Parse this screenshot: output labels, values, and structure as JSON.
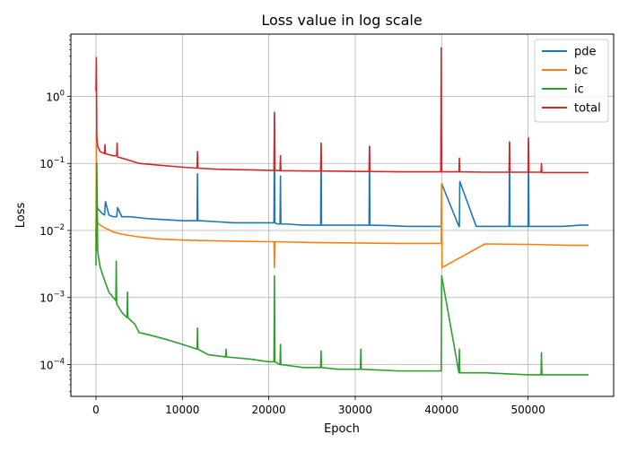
{
  "chart_data": {
    "type": "line",
    "title": "Loss value in log scale",
    "xlabel": "Epoch",
    "ylabel": "Loss",
    "yscale": "log",
    "grid": true,
    "legend_position": "top-right",
    "xlim": [
      -2900,
      59900
    ],
    "ylim": [
      3.35e-05,
      8.5
    ],
    "x_ticks": [
      0,
      10000,
      20000,
      30000,
      40000,
      50000
    ],
    "x_tick_labels": [
      "0",
      "10000",
      "20000",
      "30000",
      "40000",
      "50000"
    ],
    "y_ticks": [
      0.0001,
      0.001,
      0.01,
      0.1,
      1
    ],
    "y_tick_labels": [
      {
        "base": "10",
        "exp": "−4"
      },
      {
        "base": "10",
        "exp": "−3"
      },
      {
        "base": "10",
        "exp": "−2"
      },
      {
        "base": "10",
        "exp": "−1"
      },
      {
        "base": "10",
        "exp": "0"
      }
    ],
    "series": [
      {
        "name": "pde",
        "color": "#1f77b4",
        "x": [
          0,
          100,
          200,
          400,
          700,
          1000,
          1100,
          1500,
          2000,
          2400,
          2500,
          3000,
          4000,
          5000,
          6000,
          8000,
          10000,
          11700,
          11750,
          11800,
          12000,
          14000,
          16000,
          18000,
          20000,
          20600,
          20650,
          20700,
          21000,
          21300,
          21350,
          21400,
          22000,
          24000,
          26000,
          26050,
          26100,
          28000,
          30000,
          31600,
          31650,
          31700,
          34000,
          36000,
          38000,
          39900,
          39950,
          40000,
          42000,
          42050,
          42100,
          44000,
          46000,
          47800,
          47850,
          47900,
          50000,
          50050,
          50100,
          52000,
          54000,
          56000,
          57000
        ],
        "y": [
          0.008,
          0.025,
          0.021,
          0.02,
          0.018,
          0.017,
          0.027,
          0.017,
          0.016,
          0.016,
          0.022,
          0.016,
          0.016,
          0.0155,
          0.015,
          0.0145,
          0.014,
          0.014,
          0.07,
          0.014,
          0.014,
          0.0135,
          0.013,
          0.013,
          0.013,
          0.013,
          0.5,
          0.013,
          0.0125,
          0.0125,
          0.065,
          0.0125,
          0.0125,
          0.012,
          0.012,
          0.2,
          0.012,
          0.012,
          0.012,
          0.012,
          0.18,
          0.012,
          0.0118,
          0.0115,
          0.0115,
          0.0115,
          0.0115,
          0.05,
          0.0115,
          0.0115,
          0.054,
          0.0115,
          0.0115,
          0.0115,
          0.2,
          0.0115,
          0.0115,
          0.2,
          0.0115,
          0.0115,
          0.0115,
          0.012,
          0.012
        ]
      },
      {
        "name": "bc",
        "color": "#ff7f0e",
        "x": [
          0,
          50,
          100,
          200,
          500,
          1000,
          2000,
          3000,
          5000,
          7000,
          10000,
          14000,
          20000,
          20600,
          20650,
          20700,
          25000,
          30000,
          35000,
          39950,
          40000,
          40050,
          45000,
          50000,
          55000,
          57000
        ],
        "y": [
          0.005,
          0.28,
          0.02,
          0.013,
          0.012,
          0.011,
          0.0095,
          0.0088,
          0.008,
          0.0075,
          0.0072,
          0.007,
          0.0068,
          0.0068,
          0.0028,
          0.0068,
          0.0066,
          0.0065,
          0.0064,
          0.0064,
          0.05,
          0.0028,
          0.0063,
          0.0062,
          0.006,
          0.006
        ]
      },
      {
        "name": "ic",
        "color": "#2ca02c",
        "x": [
          0,
          100,
          200,
          300,
          500,
          1000,
          1500,
          2000,
          2300,
          2350,
          2400,
          3000,
          3600,
          3650,
          3700,
          4500,
          5000,
          6000,
          8000,
          10000,
          11700,
          11750,
          11800,
          13000,
          15000,
          15050,
          15100,
          18000,
          20000,
          20600,
          20650,
          20700,
          21300,
          21350,
          21400,
          24000,
          26000,
          26050,
          26100,
          28000,
          30000,
          30600,
          30650,
          30700,
          35000,
          39900,
          39950,
          40000,
          42000,
          42050,
          42100,
          45000,
          50000,
          51500,
          51550,
          51600,
          55000,
          57000
        ],
        "y": [
          0.003,
          0.1,
          0.005,
          0.004,
          0.0028,
          0.0018,
          0.0012,
          0.001,
          0.0009,
          0.0035,
          0.0008,
          0.0006,
          0.0005,
          0.0012,
          0.0005,
          0.0004,
          0.0003,
          0.00028,
          0.00024,
          0.0002,
          0.00017,
          0.00035,
          0.00017,
          0.00014,
          0.00013,
          0.00017,
          0.00013,
          0.00012,
          0.00011,
          0.00011,
          0.0021,
          0.00011,
          0.0001,
          0.0002,
          0.0001,
          9.03e-05,
          9.03e-05,
          0.00016,
          9.03e-05,
          8.53e-05,
          8.53e-05,
          8.53e-05,
          0.00017,
          8.53e-05,
          8.03e-05,
          8.03e-05,
          8.03e-05,
          0.0021,
          7.53e-05,
          0.00017,
          7.53e-05,
          7.53e-05,
          7.03e-05,
          7.03e-05,
          0.00015,
          7.03e-05,
          7.03e-05,
          7.03e-05
        ]
      },
      {
        "name": "total",
        "color": "#d62728",
        "x": [
          0,
          50,
          100,
          200,
          500,
          1000,
          1050,
          1100,
          2000,
          2400,
          2450,
          2500,
          3000,
          4000,
          5000,
          7000,
          10000,
          11700,
          11750,
          11800,
          14000,
          18000,
          20000,
          20600,
          20650,
          20700,
          21300,
          21350,
          21400,
          25000,
          26000,
          26050,
          26100,
          30000,
          31600,
          31650,
          31700,
          35000,
          39900,
          39950,
          40000,
          40050,
          42000,
          42050,
          42100,
          45000,
          47800,
          47850,
          47900,
          50000,
          50050,
          50100,
          51500,
          51550,
          51600,
          55000,
          57000
        ],
        "y": [
          1.2,
          3.8,
          0.25,
          0.18,
          0.15,
          0.14,
          0.19,
          0.14,
          0.13,
          0.13,
          0.2,
          0.125,
          0.12,
          0.11,
          0.1,
          0.095,
          0.088,
          0.085,
          0.15,
          0.085,
          0.082,
          0.08,
          0.079,
          0.079,
          0.58,
          0.079,
          0.078,
          0.13,
          0.078,
          0.077,
          0.077,
          0.2,
          0.077,
          0.076,
          0.076,
          0.18,
          0.076,
          0.075,
          0.075,
          5.3,
          0.075,
          0.075,
          0.075,
          0.12,
          0.075,
          0.074,
          0.074,
          0.21,
          0.074,
          0.074,
          0.24,
          0.074,
          0.074,
          0.1,
          0.073,
          0.073,
          0.073
        ]
      }
    ]
  }
}
